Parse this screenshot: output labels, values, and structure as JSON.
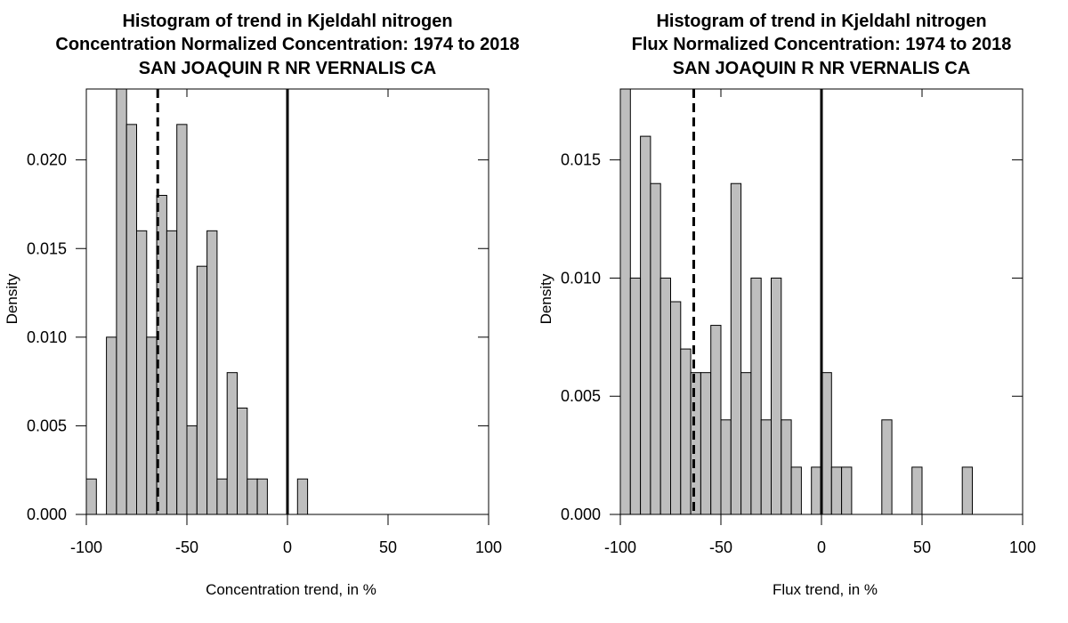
{
  "chart_data": [
    {
      "type": "bar",
      "title_lines": [
        "Histogram of trend in Kjeldahl nitrogen",
        "Concentration Normalized Concentration: 1974 to 2018",
        "SAN JOAQUIN R NR VERNALIS CA"
      ],
      "xlabel": "Concentration trend, in %",
      "ylabel": "Density",
      "xlim": [
        -100,
        100
      ],
      "ylim": [
        0,
        0.024
      ],
      "xticks": [
        "-100",
        "-50",
        "0",
        "50",
        "100"
      ],
      "yticks": [
        "0.000",
        "0.005",
        "0.010",
        "0.015",
        "0.020"
      ],
      "bin_width": 5,
      "bins_start": [
        -100,
        -90,
        -85,
        -80,
        -75,
        -70,
        -65,
        -60,
        -55,
        -50,
        -45,
        -40,
        -35,
        -30,
        -25,
        -20,
        -15,
        5
      ],
      "values": [
        0.002,
        0.01,
        0.024,
        0.022,
        0.016,
        0.01,
        0.018,
        0.016,
        0.022,
        0.005,
        0.014,
        0.016,
        0.002,
        0.008,
        0.006,
        0.002,
        0.002,
        0.002
      ],
      "vlines": [
        {
          "x": -64.5,
          "style": "dashed"
        },
        {
          "x": 0,
          "style": "solid"
        }
      ],
      "bar_fill": "#bebebe"
    },
    {
      "type": "bar",
      "title_lines": [
        "Histogram of trend in Kjeldahl nitrogen",
        "Flux Normalized Concentration: 1974 to 2018",
        "SAN JOAQUIN R NR VERNALIS CA"
      ],
      "xlabel": "Flux trend, in %",
      "ylabel": "Density",
      "xlim": [
        -100,
        100
      ],
      "ylim": [
        0,
        0.018
      ],
      "xticks": [
        "-100",
        "-50",
        "0",
        "50",
        "100"
      ],
      "yticks": [
        "0.000",
        "0.005",
        "0.010",
        "0.015"
      ],
      "bin_width": 5,
      "bins_start": [
        -100,
        -95,
        -90,
        -85,
        -80,
        -75,
        -70,
        -65,
        -60,
        -55,
        -50,
        -45,
        -40,
        -35,
        -30,
        -25,
        -20,
        -15,
        -5,
        0,
        5,
        10,
        30,
        45,
        70
      ],
      "values": [
        0.018,
        0.01,
        0.016,
        0.014,
        0.01,
        0.009,
        0.007,
        0.006,
        0.006,
        0.008,
        0.004,
        0.014,
        0.006,
        0.01,
        0.004,
        0.01,
        0.004,
        0.002,
        0.002,
        0.006,
        0.002,
        0.002,
        0.004,
        0.002,
        0.002
      ],
      "vlines": [
        {
          "x": -63.5,
          "style": "dashed"
        },
        {
          "x": 0,
          "style": "solid"
        }
      ],
      "bar_fill": "#bebebe"
    }
  ]
}
